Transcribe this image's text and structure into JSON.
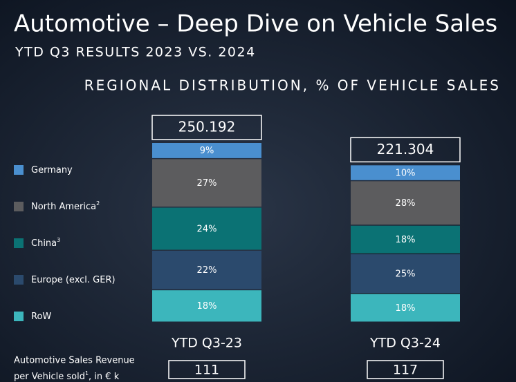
{
  "chart_data": {
    "type": "stacked_bar",
    "title": "Automotive – Deep Dive on Vehicle Sales",
    "subtitle": "YTD Q3 RESULTS 2023 VS. 2024",
    "chart_title": "REGIONAL DISTRIBUTION, % OF VEHICLE SALES",
    "categories": [
      "YTD Q3-23",
      "YTD Q3-24"
    ],
    "totals": [
      {
        "value": 250192,
        "label": "250.192"
      },
      {
        "value": 221304,
        "label": "221.304"
      }
    ],
    "series": [
      {
        "name": "Germany",
        "color": "#4a8fcf",
        "values": [
          9,
          10
        ],
        "value_labels": [
          "9%",
          "10%"
        ]
      },
      {
        "name": "North America",
        "footnote": "2",
        "color": "#5c5c5e",
        "values": [
          27,
          28
        ],
        "value_labels": [
          "27%",
          "28%"
        ]
      },
      {
        "name": "China",
        "footnote": "3",
        "color": "#0b7274",
        "values": [
          24,
          18
        ],
        "value_labels": [
          "24%",
          "18%"
        ]
      },
      {
        "name": "Europe (excl. GER)",
        "color": "#2b4a6d",
        "values": [
          22,
          25
        ],
        "value_labels": [
          "22%",
          "25%"
        ]
      },
      {
        "name": "RoW",
        "color": "#3cb6bc",
        "values": [
          18,
          18
        ],
        "value_labels": [
          "18%",
          "18%"
        ]
      }
    ],
    "revenue": {
      "label": [
        "Automotive Sales Revenue",
        "per Vehicle sold",
        "1",
        ", in € k"
      ],
      "values": [
        111,
        117
      ]
    }
  }
}
